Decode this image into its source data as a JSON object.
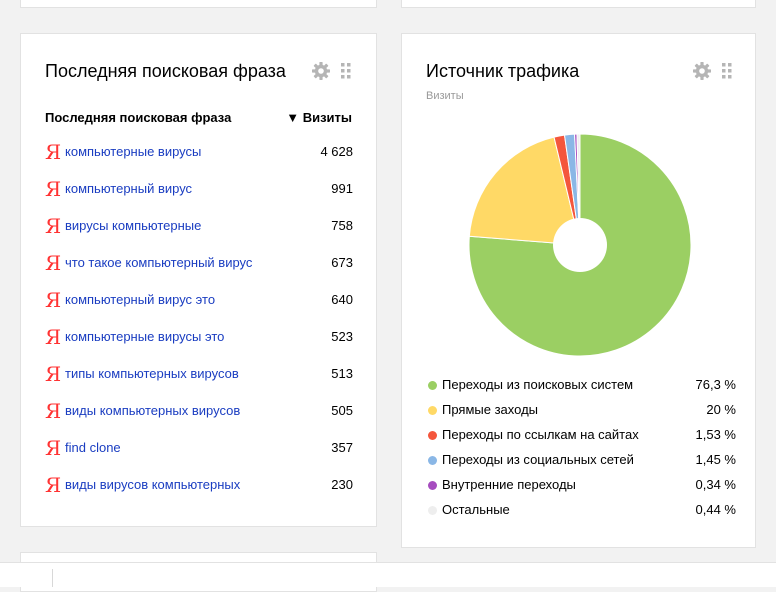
{
  "search_widget": {
    "title": "Последняя поисковая фраза",
    "col_phrase": "Последняя поисковая фраза",
    "col_visits": "▼ Визиты",
    "rows": [
      {
        "phrase": "компьютерные вирусы",
        "visits": "4 628"
      },
      {
        "phrase": "компьютерный вирус",
        "visits": "991"
      },
      {
        "phrase": "вирусы компьютерные",
        "visits": "758"
      },
      {
        "phrase": "что такое компьютерный вирус",
        "visits": "673"
      },
      {
        "phrase": "компьютерный вирус это",
        "visits": "640"
      },
      {
        "phrase": "компьютерные вирусы это",
        "visits": "523"
      },
      {
        "phrase": "типы компьютерных вирусов",
        "visits": "513"
      },
      {
        "phrase": "виды компьютерных вирусов",
        "visits": "505"
      },
      {
        "phrase": "find clone",
        "visits": "357"
      },
      {
        "phrase": "виды вирусов компьютерных",
        "visits": "230"
      }
    ],
    "engine_icon": "yandex-ya-icon"
  },
  "traffic_widget": {
    "title": "Источник трафика",
    "subtitle": "Визиты",
    "legend": [
      {
        "label": "Переходы из поисковых систем",
        "value": "76,3 %"
      },
      {
        "label": "Прямые заходы",
        "value": "20 %"
      },
      {
        "label": "Переходы по ссылкам на сайтах",
        "value": "1,53 %"
      },
      {
        "label": "Переходы из социальных сетей",
        "value": "1,45 %"
      },
      {
        "label": "Внутренние переходы",
        "value": "0,34 %"
      },
      {
        "label": "Остальные",
        "value": "0,44 %"
      }
    ]
  },
  "icons": {
    "settings": "gear-icon",
    "drag": "drag-handle-icon"
  },
  "chart_data": {
    "type": "pie",
    "title": "Источник трафика",
    "subtitle": "Визиты",
    "categories": [
      "Переходы из поисковых систем",
      "Прямые заходы",
      "Переходы по ссылкам на сайтах",
      "Переходы из социальных сетей",
      "Внутренние переходы",
      "Остальные"
    ],
    "values": [
      76.3,
      20,
      1.53,
      1.45,
      0.34,
      0.44
    ],
    "colors": [
      "#9bcf63",
      "#ffd966",
      "#f4563c",
      "#8ab7e6",
      "#a64dbf",
      "#eeeeee"
    ],
    "legend": "bottom"
  }
}
